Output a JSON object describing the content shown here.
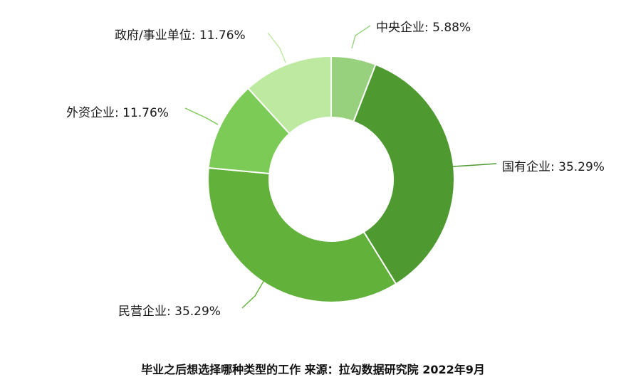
{
  "chart_data": {
    "type": "pie",
    "donut": true,
    "title": "毕业之后想选择哪种类型的工作 来源：拉勾数据研究院 2022年9月",
    "slices": [
      {
        "label": "中央企业: 5.88%",
        "value": 5.88,
        "color": "#98d17e"
      },
      {
        "label": "国有企业: 35.29%",
        "value": 35.29,
        "color": "#4e9a30"
      },
      {
        "label": "民营企业: 35.29%",
        "value": 35.29,
        "color": "#62b13a"
      },
      {
        "label": "外资企业: 11.76%",
        "value": 11.76,
        "color": "#7ccb56"
      },
      {
        "label": "政府/事业单位: 11.76%",
        "value": 11.76,
        "color": "#bde9a0"
      }
    ]
  }
}
